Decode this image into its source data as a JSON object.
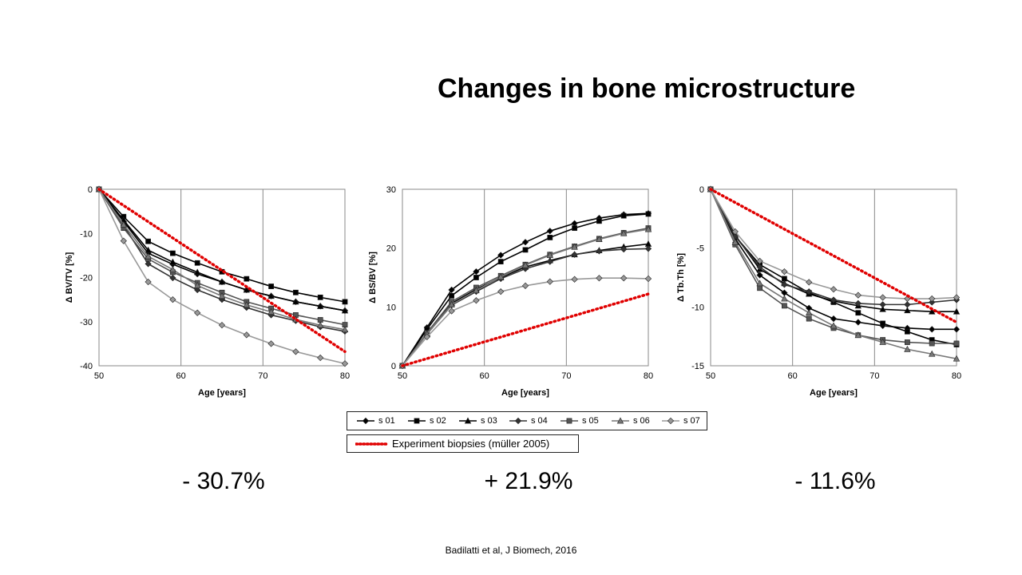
{
  "slide": {
    "title": "Changes in bone microstructure",
    "citation": "Badilatti et al, J Biomech, 2016",
    "results": [
      "- 30.7%",
      "+ 21.9%",
      "- 11.6%"
    ]
  },
  "legend": {
    "items": [
      "s 01",
      "s 02",
      "s 03",
      "s 04",
      "s 05",
      "s 06",
      "s 07"
    ],
    "experiment": "Experiment biopsies (müller 2005)"
  },
  "chart_data": [
    {
      "type": "line",
      "xlabel": "Age [years]",
      "ylabel": "Δ BV/TV [%]",
      "xlim": [
        50,
        80
      ],
      "ylim": [
        -40,
        0
      ],
      "xticks": [
        50,
        60,
        70,
        80
      ],
      "yticks": [
        0,
        -10,
        -20,
        -30,
        -40
      ],
      "x": [
        50,
        53,
        56,
        59,
        62,
        65,
        68,
        71,
        74,
        77,
        80
      ],
      "series": [
        {
          "name": "s 01",
          "color": "#000000",
          "marker": "diamond",
          "values": [
            0,
            -7.3,
            -14.5,
            -17.0,
            -19.2,
            -21.0,
            -22.8,
            -24.2,
            -25.5,
            -26.5,
            -27.5
          ]
        },
        {
          "name": "s 02",
          "color": "#000000",
          "marker": "square",
          "values": [
            0,
            -6.2,
            -11.8,
            -14.5,
            -16.7,
            -18.7,
            -20.3,
            -22.0,
            -23.4,
            -24.5,
            -25.5
          ]
        },
        {
          "name": "s 03",
          "color": "#000000",
          "marker": "triangle",
          "values": [
            0,
            -7.0,
            -13.8,
            -16.5,
            -18.8,
            -21.0,
            -22.8,
            -24.2,
            -25.5,
            -26.5,
            -27.5
          ]
        },
        {
          "name": "s 04",
          "color": "#333333",
          "marker": "diamond",
          "values": [
            0,
            -8.2,
            -16.9,
            -20.1,
            -22.8,
            -25.0,
            -26.8,
            -28.5,
            -29.8,
            -31.2,
            -32.2
          ]
        },
        {
          "name": "s 05",
          "color": "#555555",
          "marker": "square",
          "values": [
            0,
            -8.8,
            -15.8,
            -18.8,
            -21.2,
            -23.4,
            -25.5,
            -27.0,
            -28.5,
            -29.6,
            -30.7
          ]
        },
        {
          "name": "s 06",
          "color": "#777777",
          "marker": "triangle",
          "values": [
            0,
            -8.0,
            -15.2,
            -18.2,
            -21.8,
            -24.2,
            -26.2,
            -27.8,
            -29.5,
            -30.8,
            -31.8
          ]
        },
        {
          "name": "s 07",
          "color": "#999999",
          "marker": "diamond",
          "values": [
            0,
            -11.7,
            -21.0,
            -25.0,
            -28.0,
            -30.8,
            -33.0,
            -35.0,
            -36.8,
            -38.2,
            -39.5
          ]
        }
      ],
      "experiment": {
        "x": [
          50,
          80
        ],
        "values": [
          0,
          -36.8
        ]
      }
    },
    {
      "type": "line",
      "xlabel": "Age [years]",
      "ylabel": "Δ BS/BV [%]",
      "xlim": [
        50,
        80
      ],
      "ylim": [
        0,
        30
      ],
      "xticks": [
        50,
        60,
        70,
        80
      ],
      "yticks": [
        0,
        10,
        20,
        30
      ],
      "x": [
        50,
        53,
        56,
        59,
        62,
        65,
        68,
        71,
        74,
        77,
        80
      ],
      "series": [
        {
          "name": "s 01",
          "color": "#000000",
          "marker": "diamond",
          "values": [
            0,
            6.5,
            12.9,
            16.0,
            18.8,
            21.0,
            22.9,
            24.2,
            25.1,
            25.7,
            25.9
          ]
        },
        {
          "name": "s 02",
          "color": "#000000",
          "marker": "square",
          "values": [
            0,
            6.2,
            11.9,
            15.0,
            17.7,
            19.7,
            21.8,
            23.4,
            24.6,
            25.5,
            25.8
          ]
        },
        {
          "name": "s 03",
          "color": "#000000",
          "marker": "triangle",
          "values": [
            0,
            5.5,
            10.6,
            13.0,
            15.0,
            16.8,
            17.9,
            18.9,
            19.6,
            20.2,
            20.7
          ]
        },
        {
          "name": "s 04",
          "color": "#333333",
          "marker": "diamond",
          "values": [
            0,
            5.4,
            10.3,
            12.6,
            14.8,
            16.5,
            17.7,
            18.9,
            19.5,
            19.8,
            19.9
          ]
        },
        {
          "name": "s 05",
          "color": "#555555",
          "marker": "square",
          "values": [
            0,
            5.6,
            10.9,
            13.3,
            15.3,
            17.2,
            18.9,
            20.3,
            21.6,
            22.6,
            23.4
          ]
        },
        {
          "name": "s 06",
          "color": "#777777",
          "marker": "triangle",
          "values": [
            0,
            5.4,
            10.4,
            12.8,
            15.1,
            17.1,
            18.8,
            20.2,
            21.5,
            22.5,
            23.2
          ]
        },
        {
          "name": "s 07",
          "color": "#999999",
          "marker": "diamond",
          "values": [
            0,
            4.9,
            9.3,
            11.1,
            12.6,
            13.6,
            14.3,
            14.7,
            14.9,
            14.9,
            14.8
          ]
        }
      ],
      "experiment": {
        "x": [
          50,
          80
        ],
        "values": [
          0,
          12.2
        ]
      }
    },
    {
      "type": "line",
      "xlabel": "Age [years]",
      "ylabel": "Δ Tb.Th [%]",
      "xlim": [
        50,
        80
      ],
      "ylim": [
        -15,
        0
      ],
      "xticks": [
        50,
        60,
        70,
        80
      ],
      "yticks": [
        0,
        -5,
        -10,
        -15
      ],
      "x": [
        50,
        53,
        56,
        59,
        62,
        65,
        68,
        71,
        74,
        77,
        80
      ],
      "series": [
        {
          "name": "s 01",
          "color": "#000000",
          "marker": "diamond",
          "values": [
            0,
            -4.2,
            -7.3,
            -8.8,
            -10.1,
            -11.0,
            -11.3,
            -11.6,
            -11.8,
            -11.9,
            -11.9
          ]
        },
        {
          "name": "s 02",
          "color": "#000000",
          "marker": "square",
          "values": [
            0,
            -4.0,
            -6.4,
            -7.6,
            -8.8,
            -9.6,
            -10.5,
            -11.4,
            -12.1,
            -12.8,
            -13.2
          ]
        },
        {
          "name": "s 03",
          "color": "#000000",
          "marker": "triangle",
          "values": [
            0,
            -3.9,
            -6.8,
            -8.0,
            -8.9,
            -9.5,
            -9.9,
            -10.2,
            -10.3,
            -10.4,
            -10.4
          ]
        },
        {
          "name": "s 04",
          "color": "#333333",
          "marker": "diamond",
          "values": [
            0,
            -4.0,
            -6.6,
            -8.1,
            -8.7,
            -9.4,
            -9.7,
            -9.8,
            -9.8,
            -9.6,
            -9.4
          ]
        },
        {
          "name": "s 05",
          "color": "#555555",
          "marker": "square",
          "values": [
            0,
            -4.7,
            -8.4,
            -9.9,
            -11.0,
            -11.8,
            -12.4,
            -12.8,
            -13.0,
            -13.1,
            -13.1
          ]
        },
        {
          "name": "s 06",
          "color": "#777777",
          "marker": "triangle",
          "values": [
            0,
            -4.5,
            -8.0,
            -9.3,
            -10.5,
            -11.6,
            -12.4,
            -13.0,
            -13.6,
            -14.0,
            -14.4
          ]
        },
        {
          "name": "s 07",
          "color": "#999999",
          "marker": "diamond",
          "values": [
            0,
            -3.6,
            -6.1,
            -7.0,
            -7.9,
            -8.5,
            -9.0,
            -9.2,
            -9.3,
            -9.3,
            -9.2
          ]
        }
      ],
      "experiment": {
        "x": [
          50,
          80
        ],
        "values": [
          0,
          -11.3
        ]
      }
    }
  ]
}
